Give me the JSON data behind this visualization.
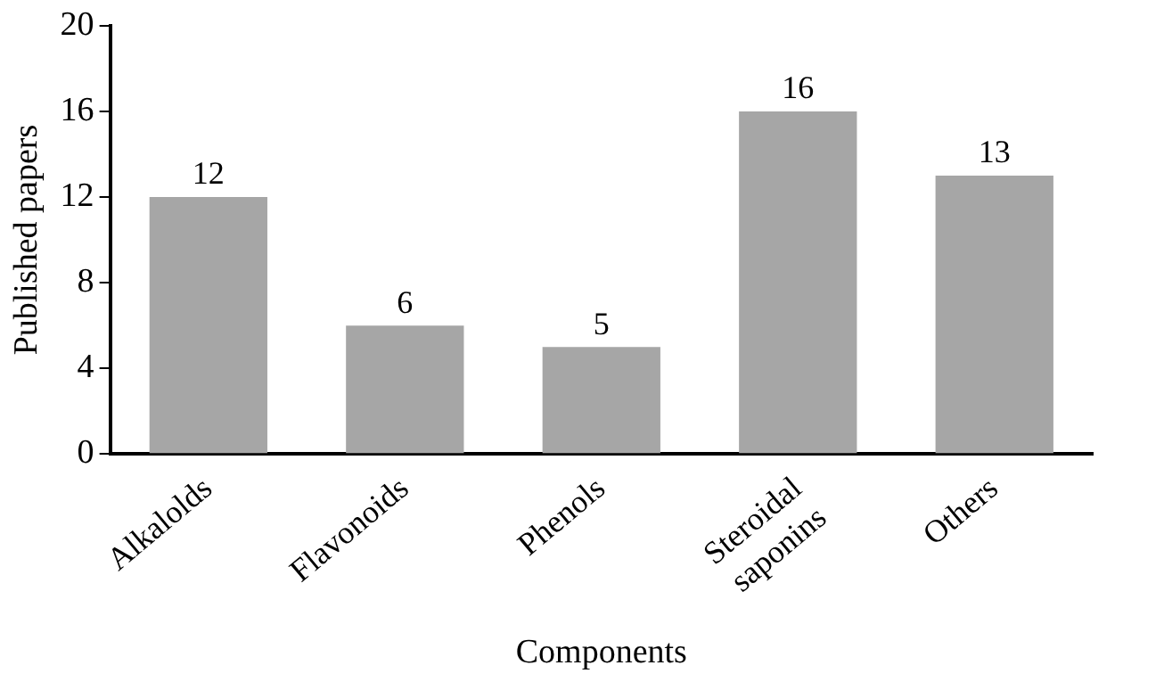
{
  "chart_data": {
    "type": "bar",
    "xlabel": "Components",
    "ylabel": "Published papers",
    "categories": [
      "Alkalolds",
      "Flavonoids",
      "Phenols",
      "Steroidal saponins",
      "Others"
    ],
    "values": [
      12,
      6,
      5,
      16,
      13
    ],
    "color": "#a6a6a6",
    "ylim": [
      0,
      20
    ],
    "yticks": [
      0,
      4,
      8,
      12,
      16,
      20
    ],
    "grid": false,
    "legend": false,
    "data_labels": true
  }
}
